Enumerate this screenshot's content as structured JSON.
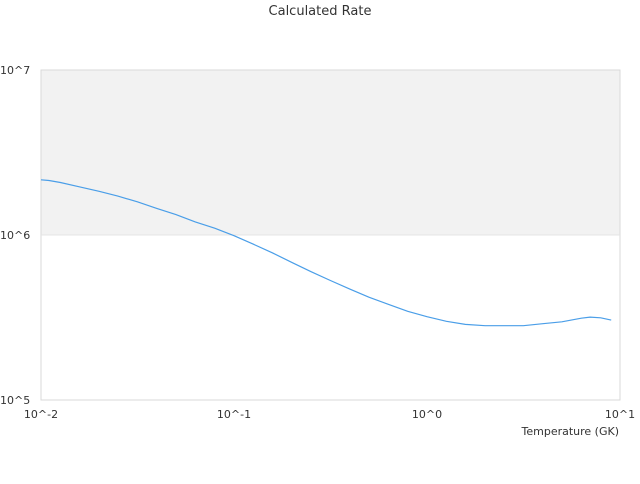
{
  "chart_data": {
    "type": "line",
    "title": "Calculated Rate",
    "xlabel": "Temperature (GK)",
    "ylabel": "",
    "xscale": "log",
    "yscale": "log",
    "xlim": [
      0.01,
      10
    ],
    "ylim": [
      100000,
      10000000
    ],
    "x_tick_labels": [
      "10^-2",
      "10^-1",
      "10^0",
      "10^1"
    ],
    "y_tick_labels": [
      "10^5",
      "10^6",
      "10^7"
    ],
    "shaded_band": {
      "y_from": 1000000,
      "y_to": 10000000,
      "color": "#f2f2f2"
    },
    "grid": false,
    "legend": "none",
    "colors": {
      "line": "#4a9ee8",
      "frame": "#d9d9d9",
      "band": "#f2f2f2"
    },
    "series": [
      {
        "x": [
          0.01,
          0.011,
          0.0126,
          0.0158,
          0.02,
          0.025,
          0.0316,
          0.0398,
          0.05,
          0.063,
          0.0794,
          0.1,
          0.126,
          0.158,
          0.2,
          0.25,
          0.316,
          0.398,
          0.5,
          0.63,
          0.794,
          1.0,
          1.26,
          1.58,
          2.0,
          2.5,
          3.16,
          3.98,
          5.0,
          6.3,
          7.0,
          7.94,
          9.0
        ],
        "y": [
          2160000,
          2140000,
          2080000,
          1960000,
          1840000,
          1720000,
          1590000,
          1450000,
          1330000,
          1200000,
          1100000,
          990000,
          880000,
          780000,
          680000,
          600000,
          530000,
          470000,
          420000,
          380000,
          345000,
          320000,
          300000,
          287000,
          282000,
          282000,
          282000,
          290000,
          298000,
          313000,
          318000,
          315000,
          305000
        ]
      }
    ]
  }
}
